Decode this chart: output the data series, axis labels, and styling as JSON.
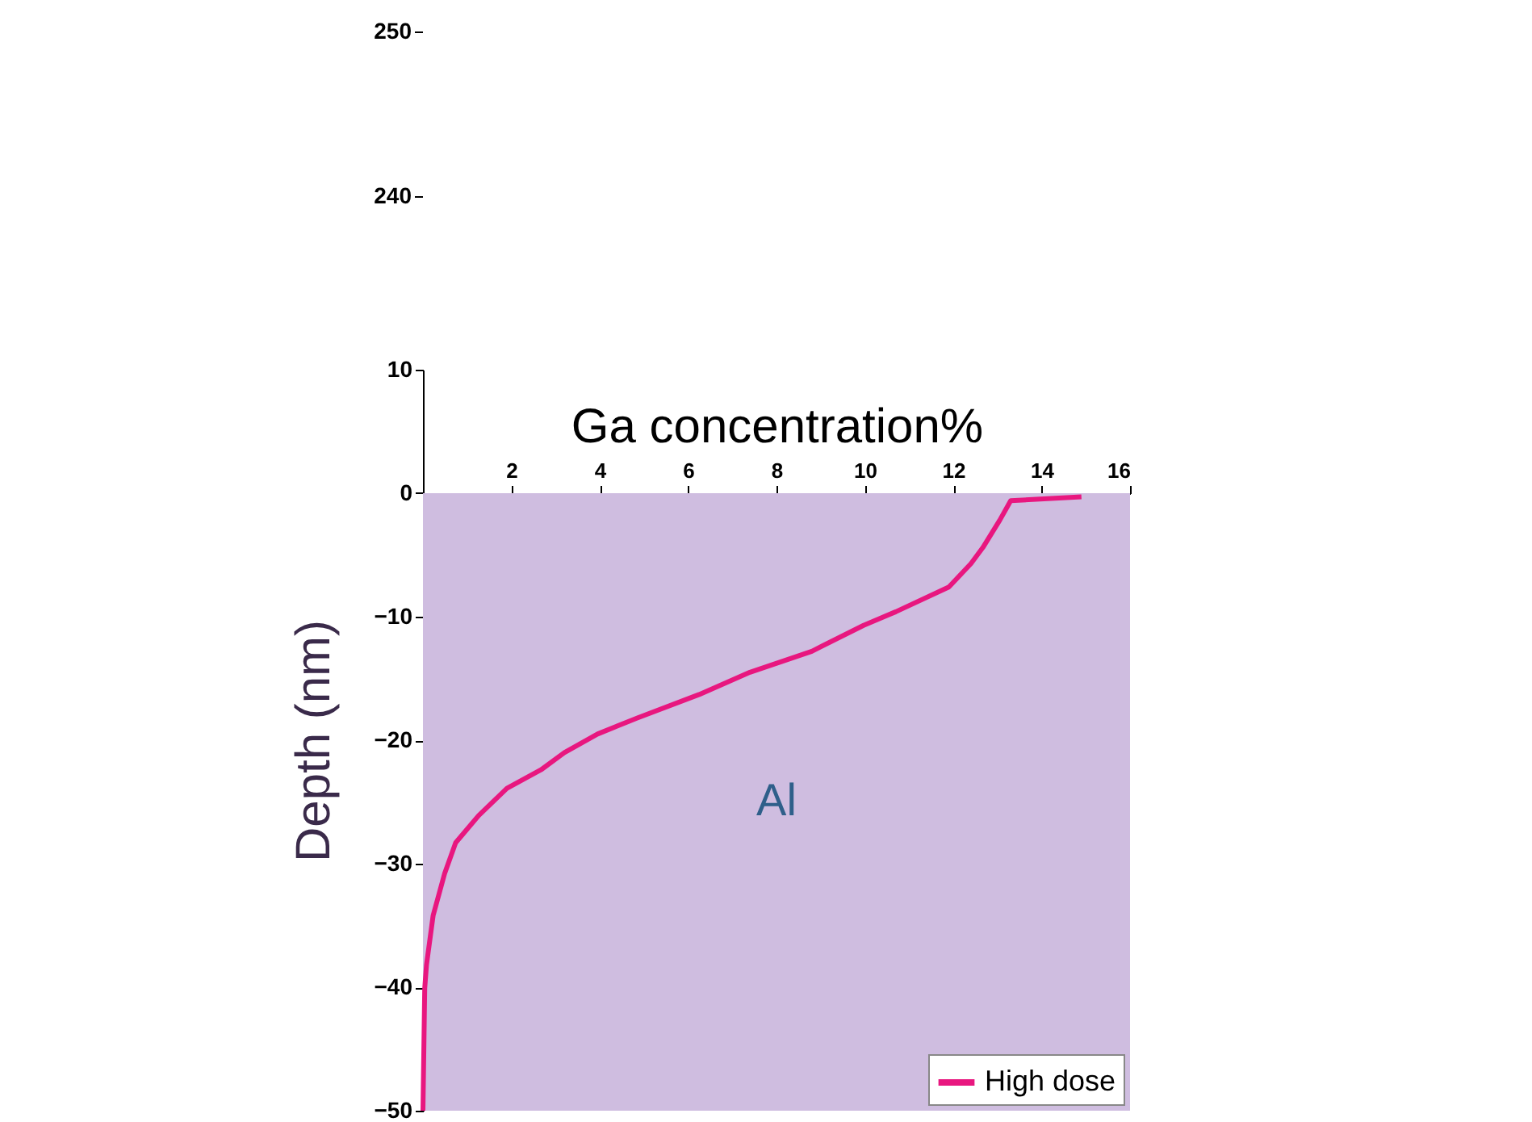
{
  "chart_data": {
    "type": "line",
    "xlabel": "Ga concentration%",
    "ylabel": "Depth (nm)",
    "xlim": [
      0,
      16
    ],
    "xticks": [
      2,
      4,
      6,
      8,
      10,
      12,
      14,
      16
    ],
    "ylim": [
      -50,
      10
    ],
    "yticks": [
      -50,
      -40,
      -30,
      -20,
      -10,
      0,
      10
    ],
    "annotations": [
      "250",
      "240"
    ],
    "series": [
      {
        "name": "High dose",
        "color": "#e8177f",
        "x": [
          14.9,
          13.3,
          13.05,
          12.67,
          12.4,
          11.9,
          10.7,
          9.97,
          8.8,
          7.4,
          6.25,
          4.85,
          3.95,
          3.2,
          2.67,
          1.9,
          1.26,
          0.74,
          0.49,
          0.23,
          0.08,
          0.04,
          0
        ],
        "values": [
          -0.3,
          -0.6,
          -2.2,
          -4.4,
          -5.7,
          -7.6,
          -9.6,
          -10.7,
          -12.8,
          -14.5,
          -16.3,
          -18.2,
          -19.5,
          -21,
          -22.4,
          -23.9,
          -26.1,
          -28.3,
          -30.8,
          -34.2,
          -38.2,
          -40.1,
          -50
        ]
      }
    ],
    "bands": [
      {
        "axis": "y",
        "from": -50,
        "to": 0,
        "label": "Al",
        "color": "#cfbde0"
      }
    ],
    "legend": "bottom right",
    "line_style": "solid",
    "marker": "none",
    "grid": false
  }
}
